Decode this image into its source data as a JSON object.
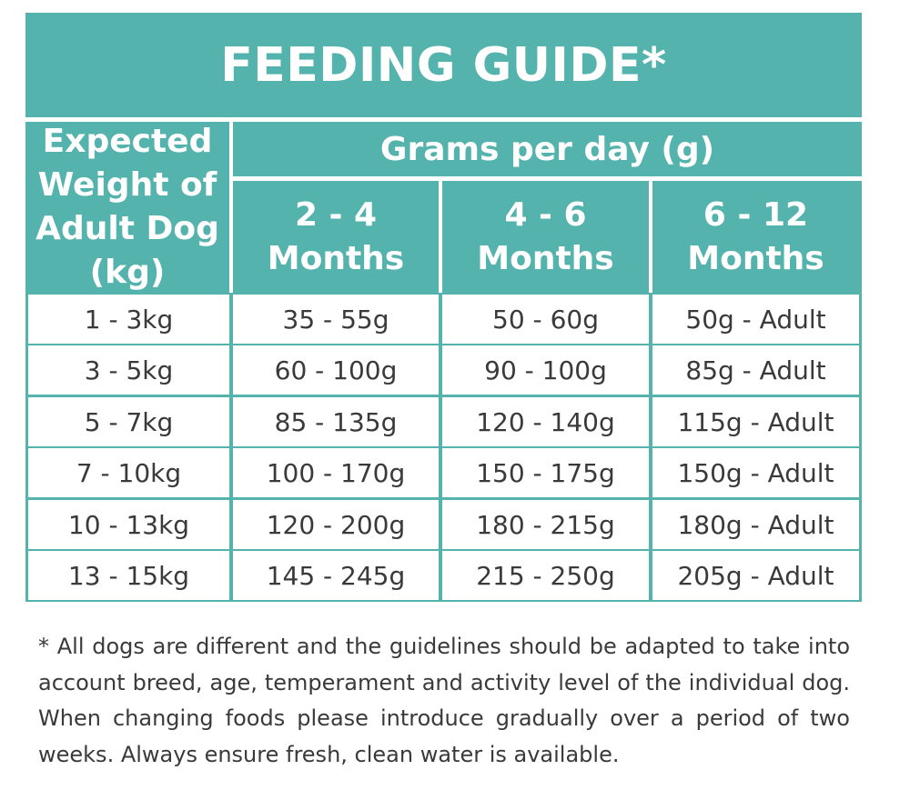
{
  "title": "FEEDING GUIDE*",
  "header": {
    "weight": "Expected\nWeight of\nAdult Dog\n(kg)",
    "grams": "Grams per day (g)",
    "months": [
      "2 - 4\nMonths",
      "4 - 6\nMonths",
      "6 - 12\nMonths"
    ]
  },
  "rows": [
    [
      "1 - 3kg",
      "35 - 55g",
      "50 - 60g",
      "50g - Adult"
    ],
    [
      "3 - 5kg",
      "60 - 100g",
      "90 - 100g",
      "85g - Adult"
    ],
    [
      "5 - 7kg",
      "85 - 135g",
      "120 - 140g",
      "115g - Adult"
    ],
    [
      "7 - 10kg",
      "100 - 170g",
      "150 - 175g",
      "150g - Adult"
    ],
    [
      "10 - 13kg",
      "120 - 200g",
      "180 - 215g",
      "180g - Adult"
    ],
    [
      "13 - 15kg",
      "145 - 245g",
      "215 - 250g",
      "205g - Adult"
    ]
  ],
  "footnote": "* All dogs are different and the guidelines should be adapted to take into account breed, age, temperament and activity level of the individual dog. When changing foods please introduce gradually over a period of two weeks. Always ensure fresh, clean water is available.",
  "colors": {
    "teal": "#55b3ad",
    "text": "#3a3a3a",
    "background": "#ffffff"
  }
}
